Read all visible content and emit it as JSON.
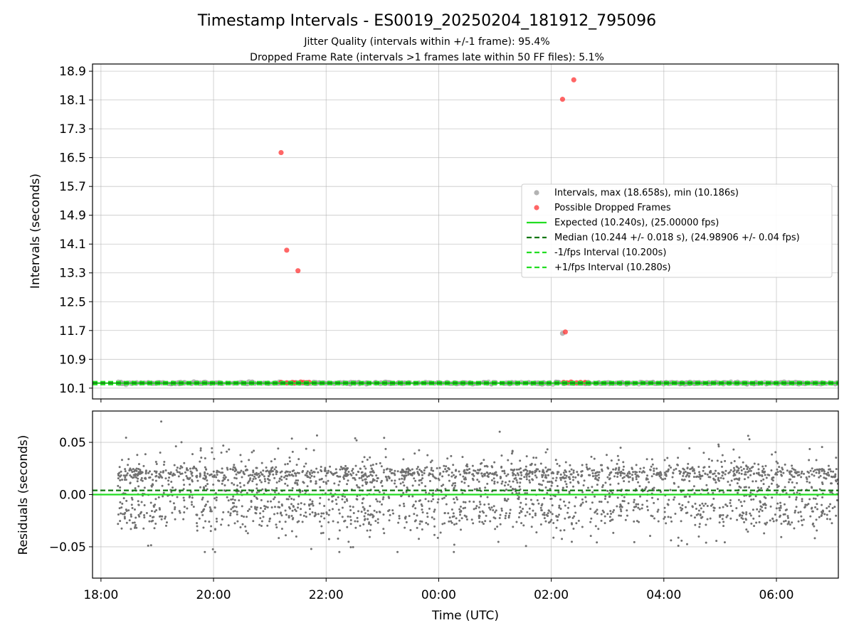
{
  "figure": {
    "title": "Timestamp Intervals - ES0019_20250204_181912_795096",
    "subtitle_1": "Jitter Quality (intervals within +/-1 frame): 95.4%",
    "subtitle_2": "Dropped Frame Rate (intervals >1 frames late within 50 FF files): 5.1%"
  },
  "chart_data": [
    {
      "type": "scatter",
      "name": "intervals",
      "ylabel": "Intervals (seconds)",
      "xlabel": "",
      "x_units": "hours since 18:00 UTC on the start date",
      "xlim": [
        -0.15,
        13.1
      ],
      "ylim": [
        9.8,
        19.1
      ],
      "x_ticks": [
        0,
        2,
        4,
        6,
        8,
        10,
        12
      ],
      "x_tick_labels": [
        "18:00",
        "20:00",
        "22:00",
        "00:00",
        "02:00",
        "04:00",
        "06:00"
      ],
      "y_ticks": [
        10.1,
        10.9,
        11.7,
        12.5,
        13.3,
        14.1,
        14.9,
        15.7,
        16.5,
        17.3,
        18.1,
        18.9
      ],
      "y_tick_labels": [
        "10.1",
        "10.9",
        "11.7",
        "12.5",
        "13.3",
        "14.1",
        "14.9",
        "15.7",
        "16.5",
        "17.3",
        "18.1",
        "18.9"
      ],
      "grid": true,
      "legend_position": "center-right",
      "series": [
        {
          "name": "Intervals, max (18.658s), min (10.186s)",
          "color": "#a0a0a0",
          "kind": "points",
          "note_band": {
            "x_range": [
              0.3,
              13.1
            ],
            "y_center": 10.24,
            "y_spread": 0.025
          },
          "points": [
            [
              8.2,
              11.62
            ]
          ]
        },
        {
          "name": "Possible Dropped Frames",
          "color": "#ff3333",
          "kind": "points",
          "points": [
            [
              3.2,
              16.64
            ],
            [
              3.3,
              13.93
            ],
            [
              3.5,
              13.36
            ],
            [
              8.2,
              18.12
            ],
            [
              8.25,
              11.66
            ],
            [
              8.4,
              18.66
            ],
            [
              3.2,
              10.26
            ],
            [
              3.3,
              10.25
            ],
            [
              3.4,
              10.26
            ],
            [
              3.45,
              10.25
            ],
            [
              3.55,
              10.27
            ],
            [
              3.6,
              10.26
            ],
            [
              3.65,
              10.25
            ],
            [
              3.7,
              10.26
            ],
            [
              8.22,
              10.26
            ],
            [
              8.28,
              10.25
            ],
            [
              8.35,
              10.27
            ],
            [
              8.45,
              10.25
            ],
            [
              8.52,
              10.26
            ],
            [
              8.6,
              10.26
            ]
          ]
        },
        {
          "name": "Expected (10.240s), (25.00000 fps)",
          "color": "#22dd22",
          "kind": "hline",
          "y": 10.24,
          "style": "solid"
        },
        {
          "name": "Median (10.244 +/- 0.018 s), (24.98906 +/- 0.04 fps)",
          "color": "#117711",
          "kind": "hline",
          "y": 10.244,
          "style": "dashed"
        },
        {
          "name": "-1/fps Interval (10.200s)",
          "color": "#22dd22",
          "kind": "hline",
          "y": 10.2,
          "style": "dashed"
        },
        {
          "name": "+1/fps Interval (10.280s)",
          "color": "#22dd22",
          "kind": "hline",
          "y": 10.28,
          "style": "dashed"
        }
      ]
    },
    {
      "type": "scatter",
      "name": "residuals",
      "ylabel": "Residuals (seconds)",
      "xlabel": "Time (UTC)",
      "x_units": "hours since 18:00 UTC on the start date",
      "xlim": [
        -0.15,
        13.1
      ],
      "ylim": [
        -0.08,
        0.08
      ],
      "x_ticks": [
        0,
        2,
        4,
        6,
        8,
        10,
        12
      ],
      "x_tick_labels": [
        "18:00",
        "20:00",
        "22:00",
        "00:00",
        "02:00",
        "04:00",
        "06:00"
      ],
      "y_ticks": [
        -0.05,
        0.0,
        0.05
      ],
      "y_tick_labels": [
        "−0.05",
        "0.00",
        "0.05"
      ],
      "grid": true,
      "series": [
        {
          "name": "residuals",
          "color": "#707070",
          "kind": "cloud",
          "x_range": [
            0.3,
            13.1
          ],
          "range": [
            -0.055,
            0.07
          ],
          "density_center": 0.02
        },
        {
          "name": "expected",
          "color": "#22dd22",
          "kind": "hline",
          "y": 0.0,
          "style": "solid"
        },
        {
          "name": "median",
          "color": "#117711",
          "kind": "hline",
          "y": 0.004,
          "style": "dashed"
        }
      ]
    }
  ]
}
